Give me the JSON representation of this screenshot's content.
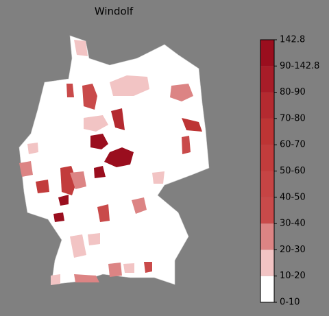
{
  "map": {
    "title": "Windolf",
    "legend": {
      "labels": [
        "0-10",
        "10-20",
        "20-30",
        "30-40",
        "40-50",
        "50-60",
        "60-70",
        "70-80",
        "80-90",
        "90-142.8",
        "142.8"
      ],
      "colors": [
        "#ffffff",
        "#f2c4c4",
        "#dc8484",
        "#c94a4a",
        "#c64444",
        "#c23c3c",
        "#bd3434",
        "#b42a30",
        "#a81c28",
        "#9a0e1e"
      ]
    }
  }
}
